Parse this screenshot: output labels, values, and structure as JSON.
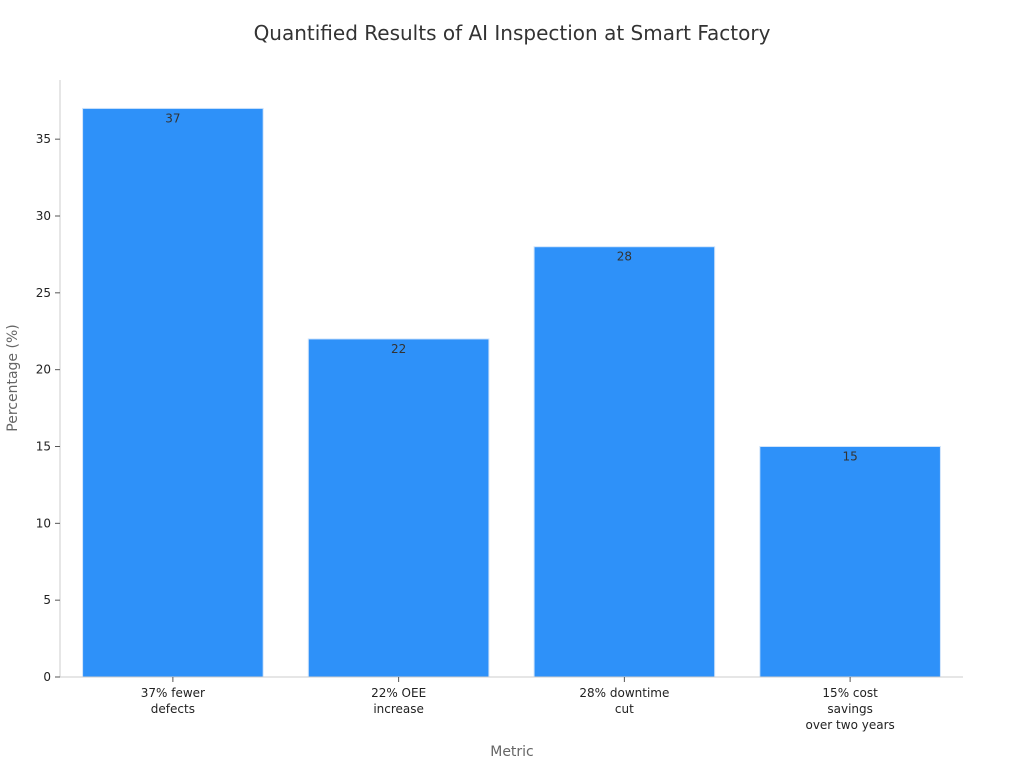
{
  "chart_data": {
    "type": "bar",
    "title": "Quantified Results of AI Inspection at Smart Factory",
    "xlabel": "Metric",
    "ylabel": "Percentage (%)",
    "categories": [
      [
        "37% fewer",
        "defects"
      ],
      [
        "22% OEE",
        "increase"
      ],
      [
        "28% downtime",
        "cut"
      ],
      [
        "15% cost",
        "savings",
        "over two years"
      ]
    ],
    "values": [
      37,
      22,
      28,
      15
    ],
    "ylim": [
      0,
      38.85
    ],
    "yticks": [
      0,
      5,
      10,
      15,
      20,
      25,
      30,
      35
    ],
    "grid": false,
    "legend": "none",
    "bar_color": "#2E91F9",
    "bar_edge_color": "#D0E4FB"
  }
}
